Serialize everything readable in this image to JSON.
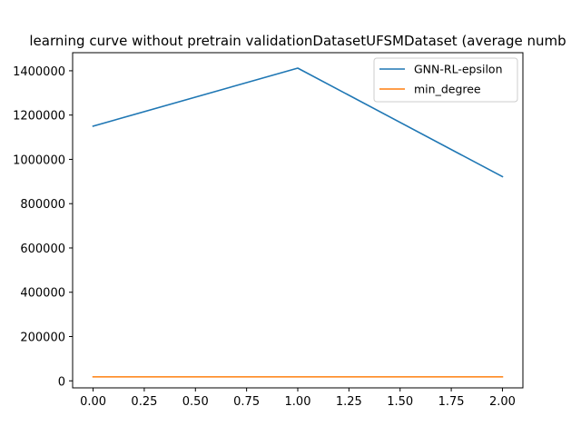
{
  "chart_data": {
    "type": "line",
    "title": "learning curve without pretrain validationDatasetUFSMDataset (average numb",
    "xlabel": "",
    "ylabel": "",
    "x": [
      0,
      1,
      2
    ],
    "series": [
      {
        "name": "GNN-RL-epsilon",
        "color": "#1f77b4",
        "values": [
          1150000,
          1412000,
          922000
        ]
      },
      {
        "name": "min_degree",
        "color": "#ff7f0e",
        "values": [
          18000,
          18000,
          18000
        ]
      }
    ],
    "xlim": [
      -0.1,
      2.1
    ],
    "ylim": [
      -31700,
      1481700
    ],
    "xticks": [
      0.0,
      0.25,
      0.5,
      0.75,
      1.0,
      1.25,
      1.5,
      1.75,
      2.0
    ],
    "xtick_labels": [
      "0.00",
      "0.25",
      "0.50",
      "0.75",
      "1.00",
      "1.25",
      "1.50",
      "1.75",
      "2.00"
    ],
    "yticks": [
      0,
      200000,
      400000,
      600000,
      800000,
      1000000,
      1200000,
      1400000
    ],
    "ytick_labels": [
      "0",
      "200000",
      "400000",
      "600000",
      "800000",
      "1000000",
      "1200000",
      "1400000"
    ],
    "grid": false,
    "legend_position": "top-right"
  }
}
